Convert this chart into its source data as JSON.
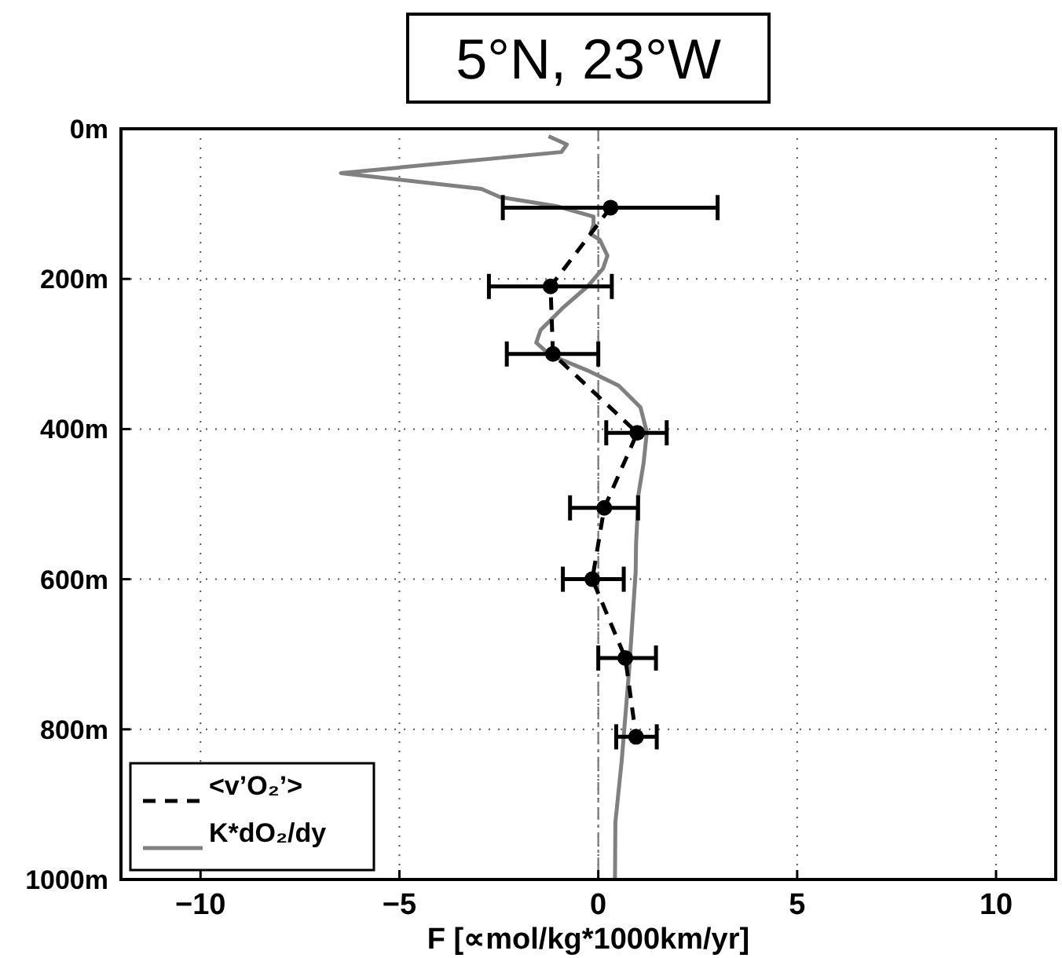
{
  "chart_data": {
    "type": "line",
    "title": "5°N, 23°W",
    "xlabel": "F [∝mol/kg*1000km/yr]",
    "xlim": [
      -12,
      11.5
    ],
    "xticks": [
      {
        "value": -10,
        "label": "−10"
      },
      {
        "value": -5,
        "label": "−5"
      },
      0,
      5,
      10
    ],
    "ylim": [
      1000,
      0
    ],
    "yticks": [
      {
        "value": 0,
        "label": "0m"
      },
      {
        "value": 200,
        "label": "200m"
      },
      {
        "value": 400,
        "label": "400m"
      },
      {
        "value": 600,
        "label": "600m"
      },
      {
        "value": 800,
        "label": "800m"
      },
      {
        "value": 1000,
        "label": "1000m"
      }
    ],
    "grid": true,
    "legend": "bottom left",
    "ref_lines": [
      {
        "axis": "x",
        "value": 0,
        "color": "#808080",
        "line_style": "dashdot"
      }
    ],
    "series": [
      {
        "name": "<v’O₂’>",
        "color": "#000000",
        "marker": "circle",
        "line_style": "dashed",
        "x": [
          0.31,
          -1.2,
          -1.14,
          0.98,
          0.15,
          -0.15,
          0.68,
          0.95
        ],
        "values": [
          105,
          210,
          300,
          405,
          505,
          600,
          705,
          810
        ],
        "xerrors": [
          [
            -2.4,
            3.0
          ],
          [
            -2.75,
            0.34
          ],
          [
            -2.3,
            0
          ],
          [
            0.2,
            1.72
          ],
          [
            -0.71,
            1.0
          ],
          [
            -0.89,
            0.64
          ],
          [
            0,
            1.45
          ],
          [
            0.45,
            1.47
          ]
        ]
      },
      {
        "name": "K*dO₂/dy",
        "color": "#808080",
        "marker": "none",
        "line_style": "solid",
        "x": [
          -1.25,
          -0.79,
          -0.93,
          -6.47,
          -2.94,
          -2.47,
          -1.06,
          -0.12,
          -0.12,
          -0.2,
          0.04,
          0.23,
          0.12,
          -0.27,
          -0.9,
          -1.45,
          -1.56,
          -1.22,
          -0.27,
          0.51,
          1.06,
          1.22,
          1.14,
          1.01,
          0.95,
          0.94,
          0.78,
          0.59,
          0.43,
          0.42
        ],
        "values": [
          10,
          21,
          31,
          59,
          80,
          91,
          103,
          117,
          128,
          140,
          148,
          169,
          186,
          210,
          239,
          268,
          285,
          301,
          322,
          342,
          371,
          404,
          445,
          487,
          553,
          590,
          718,
          841,
          924,
          1000
        ]
      }
    ]
  }
}
